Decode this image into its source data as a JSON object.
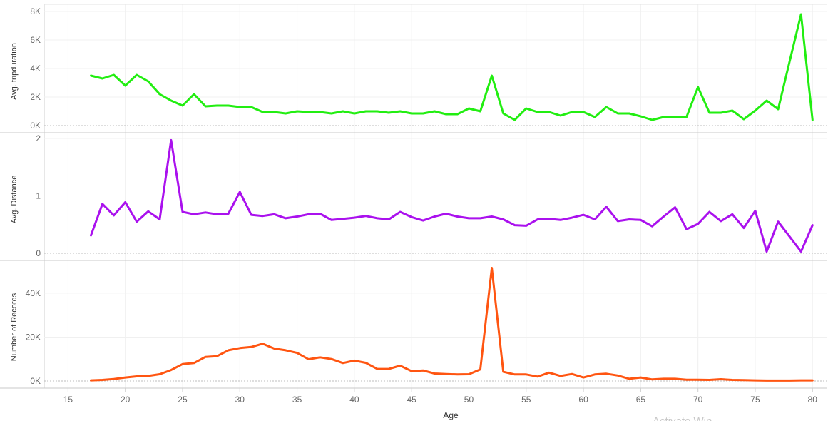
{
  "watermark": "Activate Win",
  "chart_data": {
    "type": "line",
    "xlabel": "Age",
    "x_ticks": [
      15,
      20,
      25,
      30,
      35,
      40,
      45,
      50,
      55,
      60,
      65,
      70,
      75,
      80
    ],
    "xlim": [
      12,
      81
    ],
    "grid": true,
    "x": [
      17,
      18,
      19,
      20,
      21,
      22,
      23,
      24,
      25,
      26,
      27,
      28,
      29,
      30,
      31,
      32,
      33,
      34,
      35,
      36,
      37,
      38,
      39,
      40,
      41,
      42,
      43,
      44,
      45,
      46,
      47,
      48,
      49,
      50,
      51,
      52,
      53,
      54,
      55,
      56,
      57,
      58,
      59,
      60,
      61,
      62,
      63,
      64,
      65,
      66,
      67,
      68,
      69,
      70,
      71,
      72,
      73,
      74,
      75,
      76,
      77,
      78,
      79,
      80
    ],
    "panels": [
      {
        "ylabel": "Avg. tripduration",
        "color": "#22ee11",
        "ylim": [
          0,
          8000
        ],
        "y_ticks": [
          0,
          2000,
          4000,
          6000,
          8000
        ],
        "y_tick_labels": [
          "0K",
          "2K",
          "4K",
          "6K",
          "8K"
        ],
        "values": [
          3500,
          3300,
          3550,
          2800,
          3550,
          3100,
          2200,
          1750,
          1400,
          2200,
          1350,
          1400,
          1400,
          1300,
          1300,
          950,
          950,
          850,
          1000,
          950,
          950,
          850,
          1000,
          850,
          1000,
          1000,
          900,
          1000,
          850,
          850,
          1000,
          800,
          800,
          1200,
          1000,
          3500,
          850,
          400,
          1200,
          950,
          950,
          700,
          950,
          950,
          600,
          1300,
          850,
          850,
          650,
          400,
          600,
          600,
          600,
          2700,
          900,
          900,
          1050,
          450,
          1050,
          1750,
          1150,
          4500,
          7800,
          400
        ]
      },
      {
        "ylabel": "Avg. Distance",
        "color": "#aa11ee",
        "ylim": [
          0,
          2
        ],
        "y_ticks": [
          0,
          1,
          2
        ],
        "y_tick_labels": [
          "0",
          "1",
          "2"
        ],
        "values": [
          0.31,
          0.86,
          0.66,
          0.89,
          0.55,
          0.73,
          0.59,
          1.97,
          0.72,
          0.68,
          0.71,
          0.68,
          0.69,
          1.07,
          0.67,
          0.65,
          0.68,
          0.61,
          0.64,
          0.68,
          0.69,
          0.58,
          0.6,
          0.62,
          0.65,
          0.61,
          0.59,
          0.72,
          0.63,
          0.57,
          0.64,
          0.69,
          0.64,
          0.61,
          0.61,
          0.64,
          0.59,
          0.49,
          0.48,
          0.59,
          0.6,
          0.58,
          0.62,
          0.67,
          0.59,
          0.81,
          0.56,
          0.59,
          0.58,
          0.47,
          0.64,
          0.8,
          0.42,
          0.51,
          0.72,
          0.56,
          0.68,
          0.44,
          0.74,
          0.03,
          0.55,
          0.29,
          0.03,
          0.49
        ]
      },
      {
        "ylabel": "Number of Records",
        "color": "#ff5511",
        "ylim": [
          0,
          52000
        ],
        "y_ticks": [
          0,
          20000,
          40000
        ],
        "y_tick_labels": [
          "0K",
          "20K",
          "40K"
        ],
        "values": [
          300,
          500,
          900,
          1600,
          2100,
          2300,
          3100,
          5000,
          7700,
          8200,
          11000,
          11300,
          14000,
          15000,
          15500,
          17000,
          14800,
          14000,
          12800,
          9900,
          10800,
          10000,
          8200,
          9300,
          8300,
          5500,
          5500,
          7000,
          4500,
          4800,
          3400,
          3200,
          3000,
          3100,
          5300,
          51500,
          4200,
          3000,
          3000,
          2000,
          3800,
          2300,
          3200,
          1600,
          3000,
          3300,
          2500,
          1000,
          1600,
          700,
          1000,
          1000,
          600,
          600,
          500,
          800,
          500,
          400,
          300,
          200,
          200,
          200,
          300,
          300
        ]
      }
    ]
  }
}
